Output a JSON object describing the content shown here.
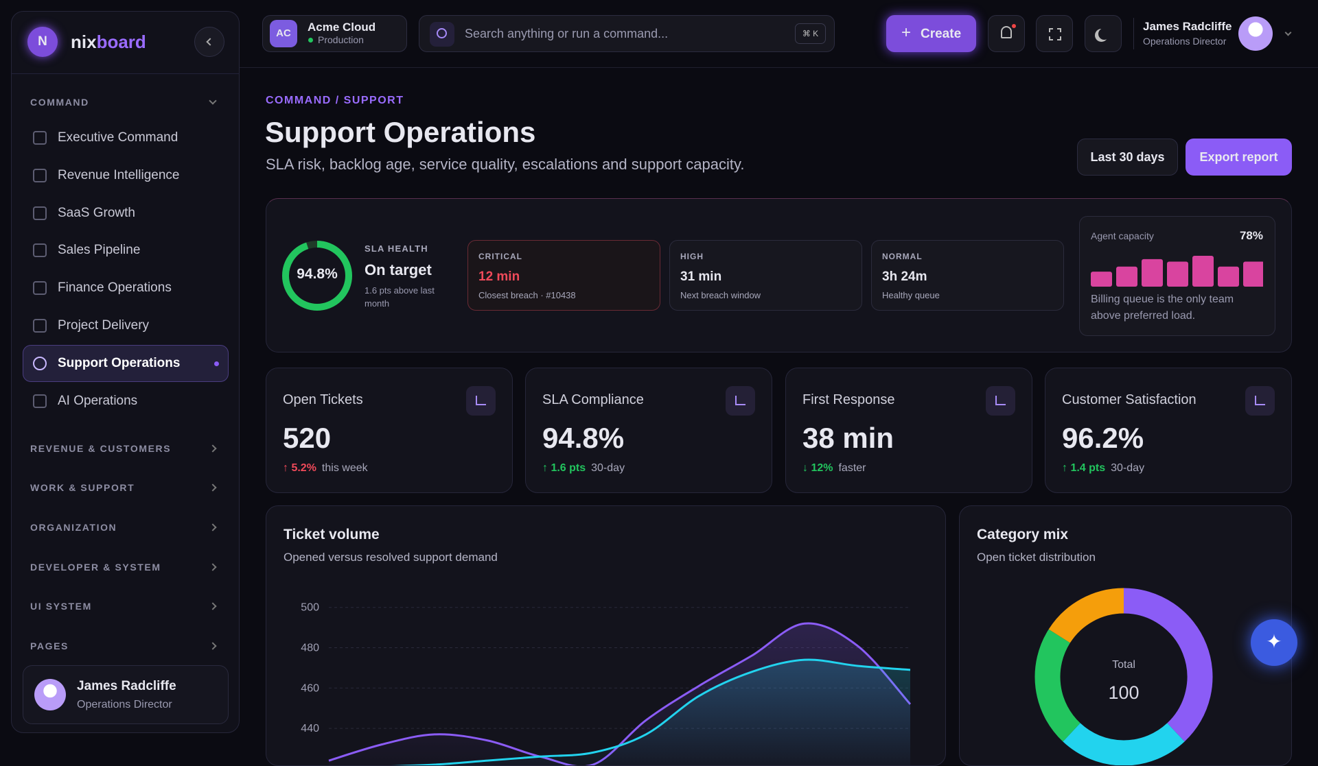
{
  "sidebar": {
    "logo": "N",
    "brand": [
      "nix",
      "board"
    ],
    "section": "COMMAND",
    "nav": [
      "Executive Command",
      "Revenue Intelligence",
      "SaaS Growth",
      "Sales Pipeline",
      "Finance Operations",
      "Project Delivery",
      "Support Operations",
      "AI Operations"
    ],
    "groups": [
      "REVENUE & CUSTOMERS",
      "WORK & SUPPORT",
      "ORGANIZATION",
      "DEVELOPER & SYSTEM",
      "UI SYSTEM",
      "PAGES"
    ],
    "user": {
      "name": "James Radcliffe",
      "role": "Operations Director"
    }
  },
  "topbar": {
    "workspace": {
      "initials": "AC",
      "name": "Acme Cloud",
      "status": "Production"
    },
    "search": "Search anything or run a command...",
    "shortcut": "⌘ K",
    "create": "Create",
    "user": {
      "name": "James Radcliffe",
      "role": "Operations Director"
    }
  },
  "header": {
    "breadcrumb": "COMMAND / SUPPORT",
    "title": "Support Operations",
    "subtitle": "SLA risk, backlog age, service quality, escalations and support capacity.",
    "range": "Last 30 days",
    "export": "Export report"
  },
  "sla": {
    "health": {
      "value": 94.8,
      "label": "94.8%"
    },
    "heading": "SLA HEALTH",
    "status": "On target",
    "note": "1.6 pts above last month",
    "tiers": [
      {
        "label": "CRITICAL",
        "value": "12 min",
        "note": "Closest breach · #10438"
      },
      {
        "label": "HIGH",
        "value": "31 min",
        "note": "Next breach window"
      },
      {
        "label": "NORMAL",
        "value": "3h 24m",
        "note": "Healthy queue"
      }
    ],
    "capacity": {
      "title": "Agent capacity",
      "value": "78%",
      "bars": [
        18,
        24,
        33,
        30,
        37,
        24,
        30
      ],
      "color": "#d9449f",
      "note": "Billing queue is the only team above preferred load."
    }
  },
  "kpis": [
    {
      "label": "Open Tickets",
      "value": 520,
      "delta": "5.2%",
      "note": "this week"
    },
    {
      "label": "SLA Compliance",
      "value": "94.8%",
      "delta": "1.6 pts",
      "note": "30-day"
    },
    {
      "label": "First Response",
      "value": "38 min",
      "delta": "12%",
      "note": "faster"
    },
    {
      "label": "Customer Satisfaction",
      "value": "96.2%",
      "delta": "1.4 pts",
      "note": "30-day"
    }
  ],
  "chart_data": [
    {
      "type": "line",
      "title": "Ticket volume",
      "subtitle": "Opened versus resolved support demand",
      "categories": [
        null,
        null,
        null,
        null,
        null,
        null,
        null,
        null,
        null,
        null,
        null,
        null
      ],
      "series": [
        {
          "color": "#8b5cf6",
          "values": [
            424,
            432,
            437,
            434,
            426,
            422,
            444,
            461,
            476,
            492,
            481,
            452
          ]
        },
        {
          "color": "#22d3ee",
          "values": [
            420,
            421,
            422,
            424,
            426,
            428,
            437,
            456,
            468,
            474,
            471,
            469
          ]
        }
      ],
      "ylim": [
        420,
        505
      ],
      "yticks": [
        440,
        460,
        480,
        500
      ],
      "grid": true
    },
    {
      "type": "pie",
      "title": "Category mix",
      "subtitle": "Open ticket distribution",
      "center_label": "Total",
      "total": 100,
      "values": [
        38,
        24,
        22,
        16
      ],
      "colors": [
        "#8b5cf6",
        "#22d3ee",
        "#22c55e",
        "#f59e0b"
      ]
    }
  ]
}
